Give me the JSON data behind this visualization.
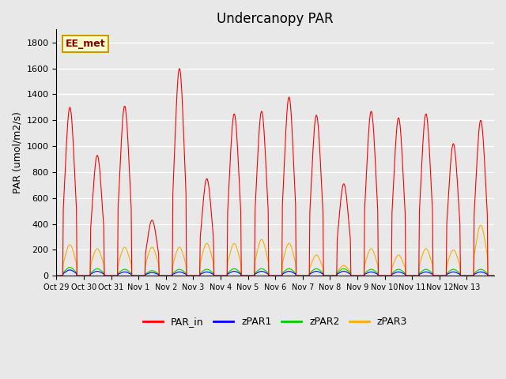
{
  "title": "Undercanopy PAR",
  "ylabel": "PAR (umol/m2/s)",
  "ylim": [
    0,
    1900
  ],
  "yticks": [
    0,
    200,
    400,
    600,
    800,
    1000,
    1200,
    1400,
    1600,
    1800
  ],
  "background_color": "#e8e8e8",
  "grid_color": "#ffffff",
  "annotation_text": "EE_met",
  "annotation_bg": "#ffffcc",
  "annotation_border": "#cc9900",
  "line_colors": {
    "PAR_in": "#ff0000",
    "zPAR1": "#0000ff",
    "zPAR2": "#00cc00",
    "zPAR3": "#ffaa00"
  },
  "x_tick_labels": [
    "Oct 29",
    "Oct 30",
    "Oct 31",
    "Nov 1",
    "Nov 2",
    "Nov 3",
    "Nov 4",
    "Nov 5",
    "Nov 6",
    "Nov 7",
    "Nov 8",
    "Nov 9",
    "Nov 10",
    "Nov 11",
    "Nov 12",
    "Nov 13"
  ],
  "par_in_peaks": [
    1300,
    930,
    1310,
    430,
    1600,
    750,
    1250,
    1270,
    1380,
    1240,
    710,
    1270,
    1220,
    1250,
    1020,
    1200
  ],
  "zpar1_peaks": [
    45,
    35,
    30,
    25,
    30,
    30,
    35,
    35,
    35,
    35,
    35,
    30,
    30,
    30,
    30,
    30
  ],
  "zpar2_peaks": [
    65,
    55,
    50,
    40,
    50,
    50,
    55,
    55,
    55,
    55,
    55,
    50,
    50,
    50,
    50,
    50
  ],
  "zpar3_peaks": [
    240,
    210,
    220,
    220,
    220,
    250,
    250,
    280,
    250,
    160,
    80,
    210,
    160,
    210,
    200,
    390
  ]
}
